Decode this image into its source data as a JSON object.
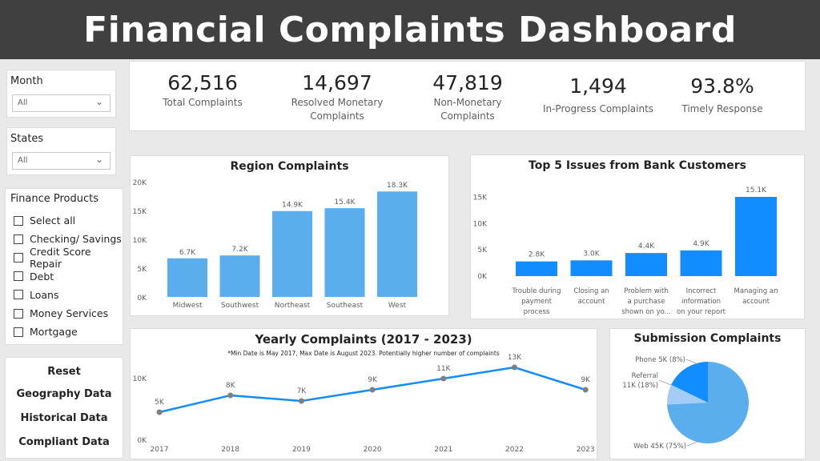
{
  "header": {
    "title": "Financial Complaints Dashboard"
  },
  "slicers": {
    "month": {
      "label": "Month",
      "value": "All"
    },
    "states": {
      "label": "States",
      "value": "All"
    },
    "finance_products": {
      "label": "Finance Products",
      "items": [
        "Select all",
        "Checking/ Savings",
        "Credit Score Repair",
        "Debt",
        "Loans",
        "Money Services",
        "Mortgage"
      ]
    }
  },
  "nav": {
    "reset": "Reset",
    "geography": "Geography Data",
    "historical": "Historical Data",
    "complaint": "Compliant Data"
  },
  "kpis": [
    {
      "value": "62,516",
      "label": "Total Complaints"
    },
    {
      "value": "14,697",
      "label": "Resolved Monetary Complaints"
    },
    {
      "value": "47,819",
      "label": "Non-Monetary Complaints"
    },
    {
      "value": "1,494",
      "label": "In-Progress Complaints"
    },
    {
      "value": "93.8%",
      "label": "Timely Response"
    }
  ],
  "colors": {
    "bar": "#5aaeed",
    "bar_dark": "#118dff",
    "line": "#118dff",
    "point": "#7f7f7f",
    "pie_web": "#5aaeed",
    "pie_referral": "#118dff",
    "pie_phone": "#a3cdf5",
    "header_bg": "#404040"
  },
  "chart_data": [
    {
      "type": "bar",
      "title": "Region Complaints",
      "categories": [
        "Midwest",
        "Southwest",
        "Northeast",
        "Southeast",
        "West"
      ],
      "values": [
        6700,
        7200,
        14900,
        15400,
        18300
      ],
      "data_labels": [
        "6.7K",
        "7.2K",
        "14.9K",
        "15.4K",
        "18.3K"
      ],
      "yticks": [
        "0K",
        "5K",
        "10K",
        "15K",
        "20K"
      ],
      "ylim": [
        0,
        20000
      ]
    },
    {
      "type": "bar",
      "title": "Top 5 Issues from Bank Customers",
      "categories": [
        [
          "Trouble during",
          "payment",
          "process"
        ],
        [
          "Closing an",
          "account"
        ],
        [
          "Problem with",
          "a purchase",
          "shown on yo..."
        ],
        [
          "Incorrect",
          "information",
          "on your report"
        ],
        [
          "Managing an",
          "account"
        ]
      ],
      "values": [
        2800,
        3000,
        4400,
        4900,
        15100
      ],
      "data_labels": [
        "2.8K",
        "3.0K",
        "4.4K",
        "4.9K",
        "15.1K"
      ],
      "yticks": [
        "0K",
        "5K",
        "10K",
        "15K"
      ],
      "ylim": [
        0,
        15100
      ]
    },
    {
      "type": "line",
      "title": "Yearly Complaints (2017 - 2023)",
      "subtitle": "*Min Date is May 2017, Max Date is August 2023. Potentially higher number of complaints",
      "x": [
        "2017",
        "2018",
        "2019",
        "2020",
        "2021",
        "2022",
        "2023"
      ],
      "values": [
        5000,
        8000,
        7000,
        9000,
        11000,
        13000,
        9000
      ],
      "data_labels": [
        "5K",
        "8K",
        "7K",
        "9K",
        "11K",
        "13K",
        "9K"
      ],
      "yticks": [
        "0K",
        "10K"
      ],
      "ylim": [
        0,
        13000
      ]
    },
    {
      "type": "pie",
      "title": "Submission Complaints",
      "slices": [
        {
          "label": "Web 45K (75%)",
          "value": 75
        },
        {
          "label": "Phone 5K (8%)",
          "value": 8
        },
        {
          "label": "Referral 11K (18%)",
          "value": 18
        }
      ]
    }
  ]
}
